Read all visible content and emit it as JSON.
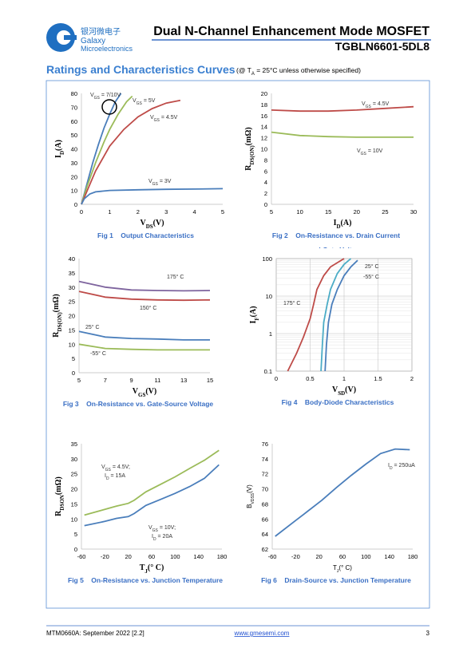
{
  "header": {
    "logo_cn": "银河微电子",
    "logo_name": "Galaxy",
    "logo_sub": "Microelectronics",
    "title": "Dual N-Channel Enhancement Mode MOSFET",
    "part": "TGBLN6601-5DL8"
  },
  "section": {
    "title": "Ratings and Characteristics Curves",
    "note": [
      "(@ T",
      "A",
      " = 25°C unless otherwise specified)"
    ]
  },
  "chart_data": [
    {
      "type": "line",
      "caption": [
        "Fig 1    Output Characteristics"
      ],
      "xlabel": [
        "V",
        "DS",
        "(V)"
      ],
      "ylabel": [
        "I",
        "D",
        "(A)"
      ],
      "xlim": [
        0,
        5
      ],
      "xticks": [
        0,
        1,
        2,
        3,
        4,
        5
      ],
      "ylim": [
        0,
        80
      ],
      "yticks": [
        0,
        10,
        20,
        30,
        40,
        50,
        60,
        70,
        80
      ],
      "grid": false,
      "series": [
        {
          "color": "#4a7ebb",
          "x": [
            0,
            0.2,
            0.4,
            0.6,
            0.8,
            1.0,
            1.2,
            1.4
          ],
          "values": [
            0,
            15,
            30,
            43,
            55,
            65,
            74,
            80
          ]
        },
        {
          "color": "#9bbb59",
          "x": [
            0,
            0.2,
            0.5,
            0.8,
            1.0,
            1.3,
            1.6,
            1.8
          ],
          "values": [
            0,
            13,
            30,
            45,
            54,
            65,
            74,
            78
          ]
        },
        {
          "color": "#be4b48",
          "x": [
            0,
            0.25,
            0.5,
            1,
            1.5,
            2,
            2.5,
            3,
            3.5
          ],
          "values": [
            0,
            12,
            24,
            42,
            54,
            63,
            69,
            73,
            75
          ]
        },
        {
          "color": "#4a7ebb",
          "x": [
            0,
            0.1,
            0.3,
            0.5,
            1,
            2,
            3,
            4,
            5
          ],
          "values": [
            0,
            4,
            7.5,
            9,
            10,
            10.5,
            10.8,
            11,
            11.3
          ]
        }
      ],
      "annotations": [
        [
          "V",
          "GS",
          " = 7/10V"
        ],
        [
          "V",
          "GS",
          " = 5V"
        ],
        [
          "V",
          "GS",
          " = 4.5V"
        ],
        [
          "V",
          "GS",
          " = 3V"
        ]
      ]
    },
    {
      "type": "line",
      "caption": [
        "Fig 2    On-Resistance vs. Drain Current",
        "and Gate Voltage"
      ],
      "xlabel": [
        "I",
        "D",
        "(A)"
      ],
      "ylabel": [
        "R",
        "DS(ON)",
        "(mΩ)"
      ],
      "xlim": [
        5,
        30
      ],
      "xticks": [
        5,
        10,
        15,
        20,
        25,
        30
      ],
      "ylim": [
        0,
        20
      ],
      "yticks": [
        0,
        2,
        4,
        6,
        8,
        10,
        12,
        14,
        16,
        18,
        20
      ],
      "grid": false,
      "series": [
        {
          "color": "#be4b48",
          "x": [
            5,
            10,
            15,
            20,
            25,
            30
          ],
          "values": [
            17.0,
            16.8,
            16.8,
            17.0,
            17.3,
            17.6
          ]
        },
        {
          "color": "#9bbb59",
          "x": [
            5,
            10,
            15,
            20,
            25,
            30
          ],
          "values": [
            13.0,
            12.4,
            12.2,
            12.1,
            12.1,
            12.1
          ]
        }
      ],
      "annotations": [
        [
          "V",
          "GS",
          " = 4.5V"
        ],
        [
          "V",
          "GS",
          " = 10V"
        ]
      ]
    },
    {
      "type": "line",
      "caption": [
        "Fig 3    On-Resistance vs. Gate-Source Voltage"
      ],
      "xlabel": [
        "V",
        "GS",
        "(V)"
      ],
      "ylabel": [
        "R",
        "DS(ON)",
        "(mΩ)"
      ],
      "xlim": [
        5,
        15
      ],
      "xticks": [
        5,
        7,
        9,
        11,
        13,
        15
      ],
      "ylim": [
        0,
        40
      ],
      "yticks": [
        0,
        5,
        10,
        15,
        20,
        25,
        30,
        35,
        40
      ],
      "grid": false,
      "series": [
        {
          "color": "#7e649e",
          "x": [
            5,
            7,
            9,
            11,
            13,
            15
          ],
          "values": [
            32,
            30,
            29,
            28.8,
            28.7,
            28.8
          ]
        },
        {
          "color": "#be4b48",
          "x": [
            5,
            7,
            9,
            11,
            13,
            15
          ],
          "values": [
            28.5,
            26.5,
            25.8,
            25.5,
            25.4,
            25.5
          ]
        },
        {
          "color": "#4a7ebb",
          "x": [
            5,
            7,
            9,
            11,
            13,
            15
          ],
          "values": [
            14.5,
            12.5,
            12,
            11.8,
            11.5,
            11.5
          ]
        },
        {
          "color": "#9bbb59",
          "x": [
            5,
            7,
            9,
            11,
            13,
            15
          ],
          "values": [
            10,
            8.5,
            8.2,
            8,
            8,
            8
          ]
        }
      ],
      "annotations": [
        [
          "175° C"
        ],
        [
          "150° C"
        ],
        [
          "25° C"
        ],
        [
          "-55° C"
        ]
      ]
    },
    {
      "type": "line",
      "caption": [
        "Fig 4    Body-Diode Characteristics"
      ],
      "xlabel": [
        "V",
        "SD",
        "(V)"
      ],
      "ylabel": [
        "I",
        "F",
        "(A)"
      ],
      "xlim": [
        0,
        2
      ],
      "xticks": [
        0,
        0.5,
        1,
        1.5,
        2
      ],
      "ylim": [
        0.1,
        100
      ],
      "yticks": [
        0.1,
        1,
        10,
        100
      ],
      "ylog": true,
      "grid": true,
      "series": [
        {
          "color": "#be4b48",
          "x": [
            0.17,
            0.3,
            0.4,
            0.5,
            0.55,
            0.6,
            0.7,
            0.8,
            1.0
          ],
          "values": [
            0.1,
            0.3,
            0.8,
            2.5,
            6,
            15,
            35,
            60,
            100
          ]
        },
        {
          "color": "#4bacc6",
          "x": [
            0.66,
            0.68,
            0.7,
            0.75,
            0.8,
            0.9,
            1.0,
            1.1
          ],
          "values": [
            0.1,
            0.5,
            2,
            6,
            15,
            40,
            70,
            100
          ]
        },
        {
          "color": "#4a7ebb",
          "x": [
            0.72,
            0.74,
            0.77,
            0.82,
            0.9,
            1.0,
            1.1,
            1.2
          ],
          "values": [
            0.1,
            0.5,
            2,
            6,
            15,
            35,
            60,
            90
          ]
        }
      ],
      "annotations": [
        [
          "25° C"
        ],
        [
          "-55° C"
        ],
        [
          "175° C"
        ]
      ]
    },
    {
      "type": "line",
      "caption": [
        "Fig 5    On-Resistance vs. Junction Temperature"
      ],
      "xlabel": [
        "T",
        "J",
        "(° C)"
      ],
      "ylabel": [
        "R",
        "DSON",
        "(mΩ)"
      ],
      "xlim": [
        -60,
        180
      ],
      "xticks": [
        -60,
        -20,
        20,
        60,
        100,
        140,
        180
      ],
      "ylim": [
        0,
        35
      ],
      "yticks": [
        0,
        5,
        10,
        15,
        20,
        25,
        30,
        35
      ],
      "grid": false,
      "series": [
        {
          "color": "#9bbb59",
          "x": [
            -55,
            -20,
            0,
            20,
            30,
            50,
            75,
            100,
            125,
            150,
            175
          ],
          "values": [
            11.3,
            13.2,
            14.3,
            15.2,
            16.2,
            19,
            21.5,
            24,
            26.8,
            29.5,
            32.8
          ]
        },
        {
          "color": "#4a7ebb",
          "x": [
            -55,
            -20,
            0,
            20,
            30,
            50,
            75,
            100,
            125,
            150,
            175
          ],
          "values": [
            7.8,
            9.2,
            10.2,
            10.8,
            11.8,
            14.5,
            16.5,
            18.5,
            20.8,
            23.5,
            28
          ]
        }
      ],
      "annotations": [
        [
          "V",
          "GS",
          " = 4.5V;"
        ],
        [
          "I",
          "D",
          " = 15A"
        ],
        [
          "V",
          "GS",
          " = 10V;"
        ],
        [
          "I",
          "D",
          " = 20A"
        ]
      ]
    },
    {
      "type": "line",
      "caption": [
        "Fig 6    Drain-Source vs. Junction Temperature"
      ],
      "xlabel": [
        "T",
        "J",
        "(° C)"
      ],
      "ylabel": [
        "B",
        "VDSS",
        "(V)"
      ],
      "xlim": [
        -60,
        180
      ],
      "xticks": [
        -60,
        -20,
        20,
        60,
        100,
        140,
        180
      ],
      "ylim": [
        62,
        76
      ],
      "yticks": [
        62,
        64,
        66,
        68,
        70,
        72,
        74,
        76
      ],
      "grid": false,
      "series": [
        {
          "color": "#4a7ebb",
          "x": [
            -55,
            -20,
            0,
            25,
            50,
            75,
            100,
            125,
            150,
            175
          ],
          "values": [
            63.7,
            65.8,
            67,
            68.5,
            70.2,
            71.8,
            73.3,
            74.7,
            75.3,
            75.2
          ]
        }
      ],
      "annotations": [
        [
          "I",
          "D",
          " = 250uA"
        ]
      ]
    }
  ],
  "footer": {
    "doc": "MTM0660A: September 2022 [2.2]",
    "url": "www.gmesemi.com",
    "page": "3"
  }
}
